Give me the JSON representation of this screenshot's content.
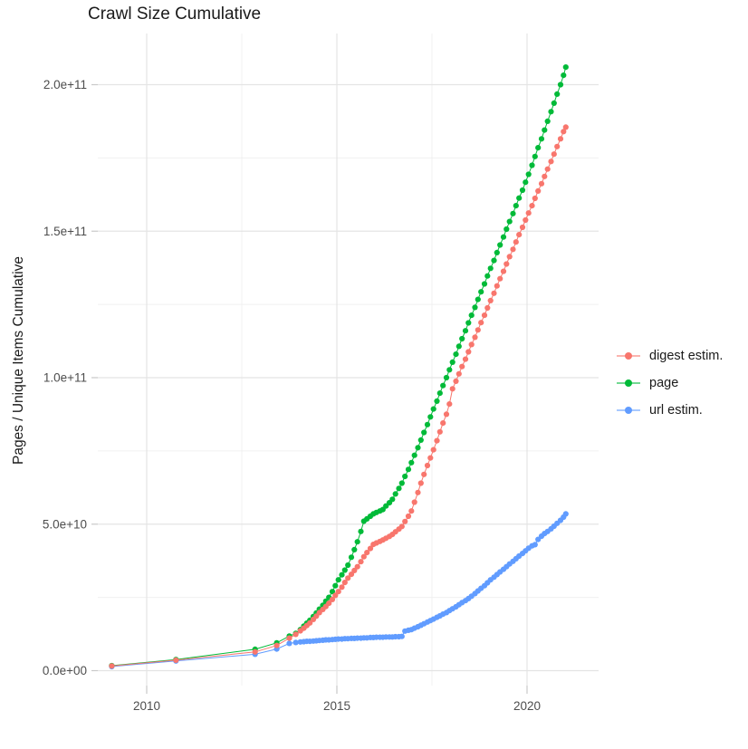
{
  "title": "Crawl Size Cumulative",
  "y_axis_title": "Pages / Unique Items Cumulative",
  "legend_position": "right",
  "chart_data": {
    "type": "scatter",
    "title": "Crawl Size Cumulative",
    "xlabel": "",
    "ylabel": "Pages / Unique Items Cumulative",
    "grid": "major+minor",
    "value_scale": 1000000000.0,
    "value_unit": "pages (values below are in billions, i.e. 1e9)",
    "x_unit": "year (decimal)",
    "xlim": [
      2008.7,
      2021.9
    ],
    "ylim_e9": [
      -5,
      217
    ],
    "x_ticks": [
      {
        "value": 2010,
        "label": "2010"
      },
      {
        "value": 2015,
        "label": "2015"
      },
      {
        "value": 2020,
        "label": "2020"
      }
    ],
    "y_ticks": [
      {
        "value": 0,
        "label": "0.0e+00"
      },
      {
        "value": 50,
        "label": "5.0e+10"
      },
      {
        "value": 100,
        "label": "1.0e+11"
      },
      {
        "value": 150,
        "label": "1.5e+11"
      },
      {
        "value": 200,
        "label": "2.0e+11"
      }
    ],
    "x": [
      2009.08,
      2010.77,
      2012.85,
      2013.42,
      2013.75,
      2013.92,
      2014.04,
      2014.13,
      2014.21,
      2014.29,
      2014.38,
      2014.46,
      2014.54,
      2014.63,
      2014.71,
      2014.79,
      2014.88,
      2014.96,
      2015.04,
      2015.13,
      2015.21,
      2015.29,
      2015.38,
      2015.46,
      2015.54,
      2015.63,
      2015.71,
      2015.79,
      2015.88,
      2015.96,
      2016.04,
      2016.13,
      2016.21,
      2016.29,
      2016.38,
      2016.46,
      2016.54,
      2016.63,
      2016.71,
      2016.79,
      2016.88,
      2016.96,
      2017.04,
      2017.13,
      2017.21,
      2017.29,
      2017.38,
      2017.46,
      2017.54,
      2017.63,
      2017.71,
      2017.79,
      2017.88,
      2017.96,
      2018.04,
      2018.13,
      2018.21,
      2018.29,
      2018.38,
      2018.46,
      2018.54,
      2018.63,
      2018.71,
      2018.79,
      2018.88,
      2018.96,
      2019.04,
      2019.13,
      2019.21,
      2019.29,
      2019.38,
      2019.46,
      2019.54,
      2019.63,
      2019.71,
      2019.79,
      2019.88,
      2019.96,
      2020.04,
      2020.13,
      2020.21,
      2020.29,
      2020.38,
      2020.46,
      2020.54,
      2020.63,
      2020.71,
      2020.79,
      2020.88,
      2020.96,
      2021.02
    ],
    "series": [
      {
        "id": "digest",
        "name": "digest estim.",
        "color": "#F8766D",
        "values": [
          1.6,
          3.6,
          6.4,
          8.6,
          11.1,
          12.4,
          13.6,
          14.5,
          15.4,
          16.3,
          17.5,
          18.6,
          19.8,
          20.9,
          21.9,
          23.0,
          24.3,
          25.7,
          27.0,
          28.5,
          30.1,
          31.6,
          32.9,
          34.2,
          35.5,
          37.2,
          38.9,
          40.3,
          41.7,
          43.1,
          43.6,
          44.1,
          44.6,
          45.2,
          45.8,
          46.5,
          47.4,
          48.3,
          49.2,
          50.9,
          52.7,
          54.5,
          57.5,
          60.8,
          64.0,
          67.0,
          70.0,
          72.6,
          75.4,
          78.5,
          81.5,
          84.5,
          87.5,
          91.0,
          96.2,
          98.8,
          101.3,
          103.8,
          106.3,
          108.8,
          111.3,
          113.8,
          116.3,
          118.8,
          121.3,
          123.8,
          126.3,
          128.8,
          131.3,
          133.8,
          136.3,
          138.8,
          141.3,
          143.8,
          146.3,
          148.8,
          151.3,
          153.8,
          156.2,
          158.7,
          161.2,
          163.7,
          166.2,
          168.7,
          171.2,
          173.8,
          176.3,
          178.9,
          181.5,
          184.0,
          185.5
        ]
      },
      {
        "id": "page",
        "name": "page",
        "color": "#00BA38",
        "values": [
          1.7,
          3.8,
          7.3,
          9.5,
          11.8,
          12.7,
          14.0,
          15.2,
          16.2,
          17.2,
          18.5,
          19.7,
          21.0,
          22.3,
          23.7,
          25.0,
          27.0,
          29.0,
          31.0,
          32.7,
          34.3,
          36.0,
          38.7,
          41.3,
          44.0,
          47.5,
          51.0,
          51.8,
          52.7,
          53.5,
          54.0,
          54.5,
          55.0,
          56.2,
          57.3,
          58.5,
          60.3,
          62.2,
          64.0,
          66.3,
          68.7,
          71.0,
          73.5,
          76.1,
          78.7,
          81.3,
          84.0,
          86.6,
          89.3,
          92.0,
          94.7,
          97.3,
          100.0,
          102.7,
          105.3,
          108.0,
          110.7,
          113.3,
          116.0,
          118.7,
          121.3,
          124.0,
          126.7,
          129.3,
          132.0,
          134.7,
          137.3,
          140.0,
          142.7,
          145.3,
          148.0,
          150.7,
          153.3,
          156.0,
          158.7,
          161.3,
          164.0,
          166.7,
          169.4,
          172.5,
          175.5,
          178.5,
          181.5,
          184.5,
          187.5,
          190.8,
          193.7,
          196.8,
          200.0,
          203.2,
          206.0
        ]
      },
      {
        "id": "url",
        "name": "url estim.",
        "color": "#619CFF",
        "values": [
          1.4,
          3.3,
          5.6,
          7.4,
          9.3,
          9.6,
          9.8,
          9.9,
          10.0,
          10.0,
          10.1,
          10.2,
          10.3,
          10.4,
          10.5,
          10.5,
          10.6,
          10.7,
          10.8,
          10.8,
          10.9,
          10.9,
          11.0,
          11.0,
          11.1,
          11.1,
          11.2,
          11.2,
          11.3,
          11.3,
          11.4,
          11.4,
          11.4,
          11.5,
          11.5,
          11.5,
          11.6,
          11.6,
          11.7,
          13.5,
          13.8,
          14.0,
          14.5,
          15.0,
          15.5,
          16.0,
          16.6,
          17.1,
          17.6,
          18.2,
          18.7,
          19.3,
          19.8,
          20.5,
          21.1,
          21.8,
          22.5,
          23.2,
          23.9,
          24.6,
          25.4,
          26.3,
          27.2,
          28.1,
          29.0,
          30.0,
          31.0,
          31.9,
          32.8,
          33.7,
          34.6,
          35.5,
          36.4,
          37.3,
          38.2,
          39.1,
          40.0,
          40.9,
          41.8,
          42.6,
          43.0,
          44.8,
          45.9,
          46.8,
          47.5,
          48.4,
          49.3,
          50.3,
          51.3,
          52.4,
          53.5
        ]
      }
    ],
    "legend": [
      "digest estim.",
      "page",
      "url estim."
    ],
    "style": {
      "background": "#ffffff",
      "grid_major_color": "#e4e4e4",
      "grid_minor_color": "#f0f0f0",
      "tick_color": "#c9c9c9",
      "axis_text_color": "#4d4d4d",
      "title_color": "#1a1a1a",
      "point_radius": 3.1
    }
  }
}
